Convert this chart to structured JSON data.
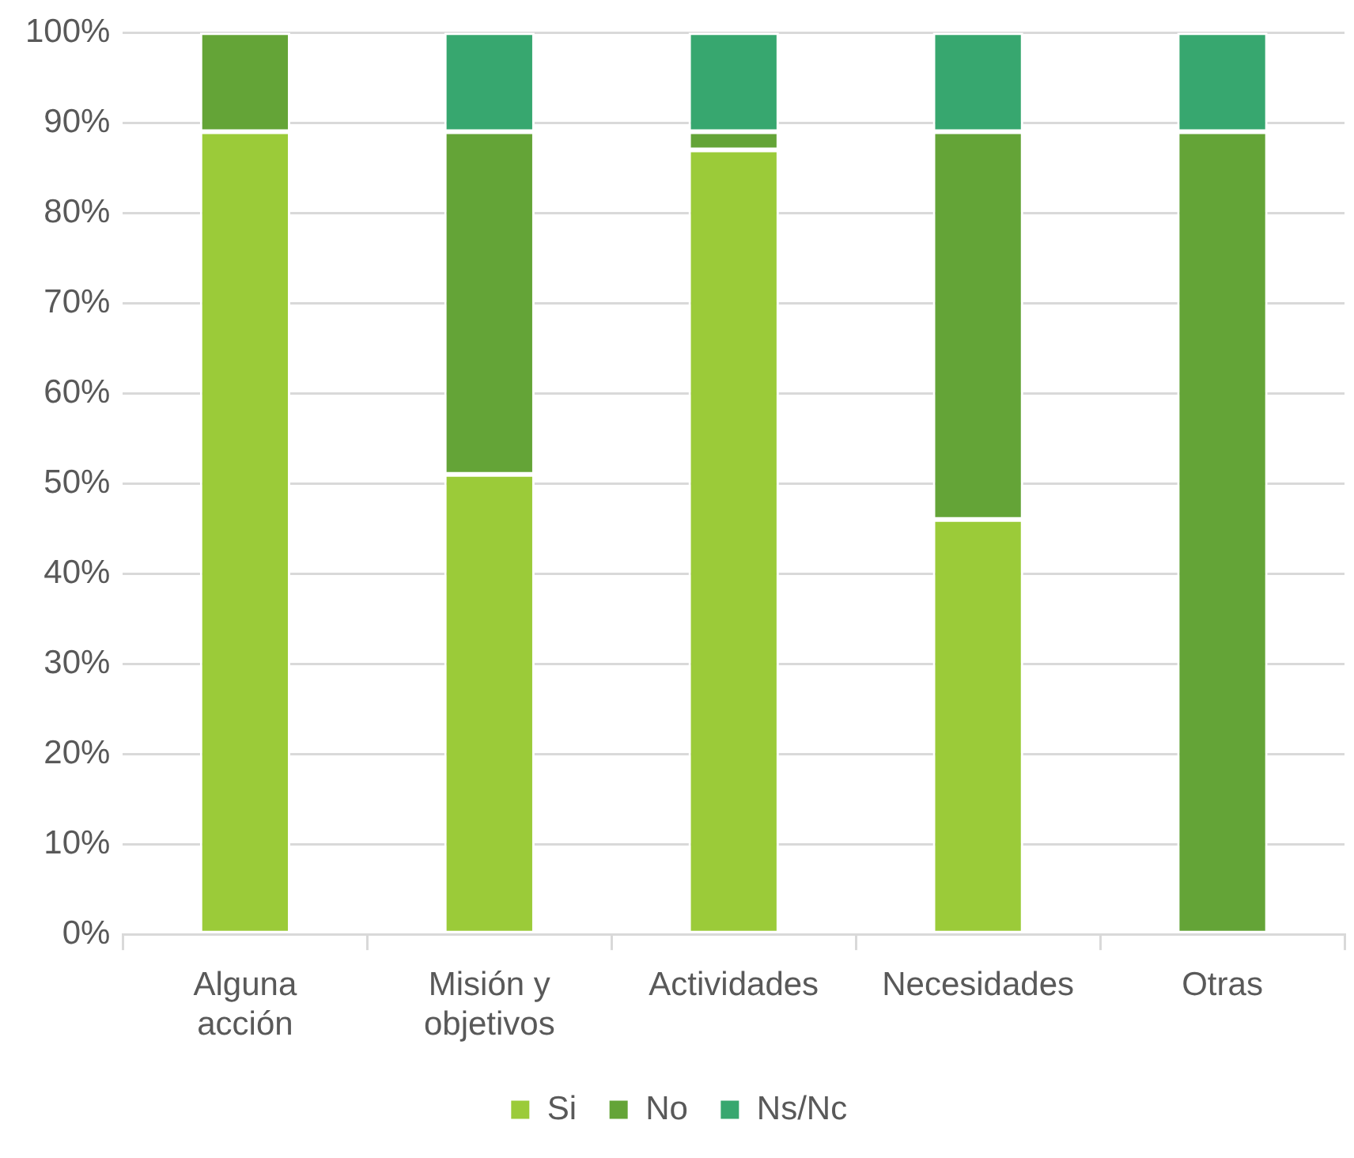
{
  "chart_data": {
    "type": "bar",
    "stacked": true,
    "categories": [
      "Alguna acción",
      "Misión y objetivos",
      "Actividades",
      "Necesidades",
      "Otras"
    ],
    "series": [
      {
        "name": "Si",
        "color": "#9bcb39",
        "values": [
          89,
          51,
          87,
          46,
          0
        ]
      },
      {
        "name": "No",
        "color": "#64a437",
        "values": [
          11,
          38,
          2,
          43,
          89
        ]
      },
      {
        "name": "Ns/Nc",
        "color": "#37a76f",
        "values": [
          0,
          11,
          11,
          11,
          11
        ]
      }
    ],
    "ylim": [
      0,
      100
    ],
    "yticks": [
      {
        "value": 0,
        "label": "0%"
      },
      {
        "value": 10,
        "label": "10%"
      },
      {
        "value": 20,
        "label": "20%"
      },
      {
        "value": 30,
        "label": "30%"
      },
      {
        "value": 40,
        "label": "40%"
      },
      {
        "value": 50,
        "label": "50%"
      },
      {
        "value": 60,
        "label": "60%"
      },
      {
        "value": 70,
        "label": "70%"
      },
      {
        "value": 80,
        "label": "80%"
      },
      {
        "value": 90,
        "label": "90%"
      },
      {
        "value": 100,
        "label": "100%"
      }
    ],
    "grid": "y",
    "legend": "bottom"
  }
}
